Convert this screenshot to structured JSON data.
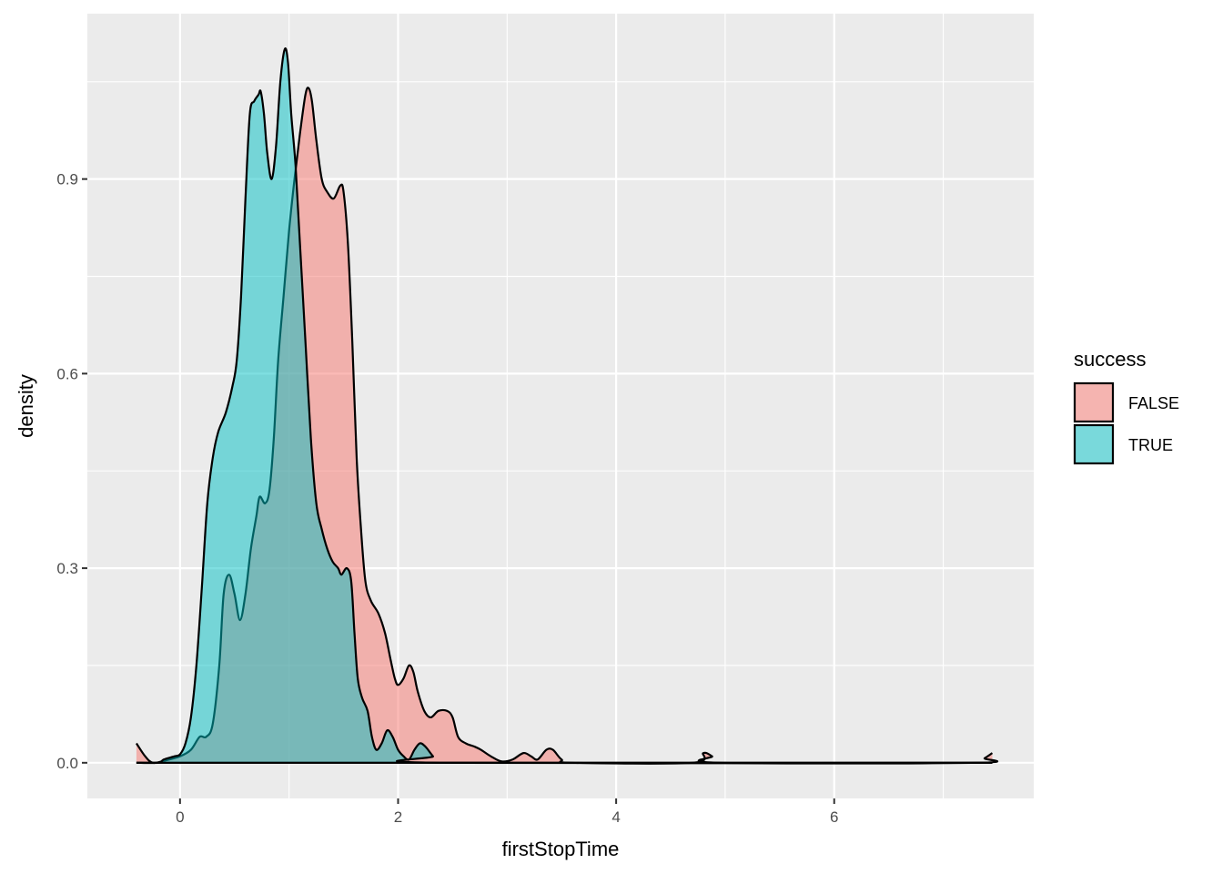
{
  "chart_data": {
    "type": "area",
    "xlabel": "firstStopTime",
    "ylabel": "density",
    "xlim": [
      -0.85,
      7.83
    ],
    "ylim": [
      -0.055,
      1.155
    ],
    "x_ticks": [
      0,
      2,
      4,
      6
    ],
    "x_tick_labels": [
      "0",
      "2",
      "4",
      "6"
    ],
    "y_ticks": [
      0.0,
      0.3,
      0.6,
      0.9
    ],
    "y_tick_labels": [
      "0.0",
      "0.3",
      "0.6",
      "0.9"
    ],
    "grid": true,
    "legend": {
      "title": "success",
      "position": "right"
    },
    "series": [
      {
        "name": "FALSE",
        "color": "#F8766D",
        "points": [
          [
            -0.4,
            0.03
          ],
          [
            -0.32,
            0.01
          ],
          [
            -0.25,
            0.0
          ],
          [
            -0.15,
            0.003
          ],
          [
            0.0,
            0.01
          ],
          [
            0.1,
            0.02
          ],
          [
            0.18,
            0.04
          ],
          [
            0.24,
            0.04
          ],
          [
            0.3,
            0.06
          ],
          [
            0.36,
            0.15
          ],
          [
            0.4,
            0.26
          ],
          [
            0.45,
            0.29
          ],
          [
            0.5,
            0.26
          ],
          [
            0.55,
            0.22
          ],
          [
            0.6,
            0.26
          ],
          [
            0.65,
            0.33
          ],
          [
            0.7,
            0.38
          ],
          [
            0.73,
            0.41
          ],
          [
            0.78,
            0.4
          ],
          [
            0.82,
            0.42
          ],
          [
            0.86,
            0.5
          ],
          [
            0.9,
            0.62
          ],
          [
            0.95,
            0.72
          ],
          [
            1.0,
            0.82
          ],
          [
            1.05,
            0.9
          ],
          [
            1.1,
            0.97
          ],
          [
            1.15,
            1.03
          ],
          [
            1.18,
            1.04
          ],
          [
            1.21,
            1.02
          ],
          [
            1.25,
            0.96
          ],
          [
            1.3,
            0.9
          ],
          [
            1.35,
            0.88
          ],
          [
            1.41,
            0.87
          ],
          [
            1.47,
            0.89
          ],
          [
            1.5,
            0.88
          ],
          [
            1.54,
            0.8
          ],
          [
            1.58,
            0.65
          ],
          [
            1.62,
            0.47
          ],
          [
            1.66,
            0.36
          ],
          [
            1.7,
            0.28
          ],
          [
            1.75,
            0.25
          ],
          [
            1.82,
            0.23
          ],
          [
            1.88,
            0.2
          ],
          [
            1.93,
            0.16
          ],
          [
            1.97,
            0.13
          ],
          [
            2.0,
            0.12
          ],
          [
            2.05,
            0.13
          ],
          [
            2.1,
            0.15
          ],
          [
            2.14,
            0.14
          ],
          [
            2.18,
            0.11
          ],
          [
            2.24,
            0.08
          ],
          [
            2.3,
            0.07
          ],
          [
            2.37,
            0.08
          ],
          [
            2.45,
            0.08
          ],
          [
            2.5,
            0.07
          ],
          [
            2.55,
            0.04
          ],
          [
            2.62,
            0.03
          ],
          [
            2.7,
            0.025
          ],
          [
            2.76,
            0.02
          ],
          [
            2.85,
            0.01
          ],
          [
            2.95,
            0.002
          ],
          [
            3.05,
            0.005
          ],
          [
            3.15,
            0.015
          ],
          [
            3.22,
            0.01
          ],
          [
            3.28,
            0.005
          ],
          [
            3.36,
            0.02
          ],
          [
            3.42,
            0.02
          ],
          [
            3.5,
            0.005
          ],
          [
            3.6,
            0.0
          ],
          [
            4.7,
            0.0
          ],
          [
            4.8,
            0.015
          ],
          [
            4.88,
            0.01
          ],
          [
            4.95,
            0.0
          ],
          [
            7.3,
            0.0
          ],
          [
            7.38,
            0.007
          ],
          [
            7.45,
            0.015
          ]
        ]
      },
      {
        "name": "TRUE",
        "color": "#00BFC4",
        "points": [
          [
            -0.4,
            0.0
          ],
          [
            -0.2,
            0.0
          ],
          [
            -0.15,
            0.005
          ],
          [
            -0.05,
            0.01
          ],
          [
            0.0,
            0.013
          ],
          [
            0.05,
            0.03
          ],
          [
            0.1,
            0.07
          ],
          [
            0.15,
            0.15
          ],
          [
            0.2,
            0.27
          ],
          [
            0.25,
            0.4
          ],
          [
            0.3,
            0.47
          ],
          [
            0.35,
            0.51
          ],
          [
            0.42,
            0.54
          ],
          [
            0.48,
            0.58
          ],
          [
            0.52,
            0.62
          ],
          [
            0.56,
            0.72
          ],
          [
            0.6,
            0.87
          ],
          [
            0.64,
            1.0
          ],
          [
            0.68,
            1.02
          ],
          [
            0.72,
            1.03
          ],
          [
            0.74,
            1.035
          ],
          [
            0.77,
            1.0
          ],
          [
            0.8,
            0.94
          ],
          [
            0.84,
            0.9
          ],
          [
            0.88,
            0.95
          ],
          [
            0.92,
            1.05
          ],
          [
            0.96,
            1.1
          ],
          [
            0.99,
            1.08
          ],
          [
            1.02,
            1.0
          ],
          [
            1.06,
            0.92
          ],
          [
            1.1,
            0.8
          ],
          [
            1.15,
            0.65
          ],
          [
            1.2,
            0.5
          ],
          [
            1.25,
            0.4
          ],
          [
            1.3,
            0.36
          ],
          [
            1.35,
            0.33
          ],
          [
            1.4,
            0.31
          ],
          [
            1.45,
            0.3
          ],
          [
            1.48,
            0.29
          ],
          [
            1.53,
            0.3
          ],
          [
            1.57,
            0.28
          ],
          [
            1.6,
            0.2
          ],
          [
            1.63,
            0.13
          ],
          [
            1.67,
            0.1
          ],
          [
            1.72,
            0.08
          ],
          [
            1.76,
            0.04
          ],
          [
            1.8,
            0.02
          ],
          [
            1.85,
            0.03
          ],
          [
            1.9,
            0.05
          ],
          [
            1.95,
            0.04
          ],
          [
            2.0,
            0.02
          ],
          [
            2.05,
            0.01
          ],
          [
            2.1,
            0.005
          ],
          [
            2.15,
            0.02
          ],
          [
            2.2,
            0.03
          ],
          [
            2.25,
            0.025
          ],
          [
            2.32,
            0.01
          ],
          [
            2.38,
            0.0
          ],
          [
            7.45,
            0.0
          ]
        ]
      }
    ]
  }
}
